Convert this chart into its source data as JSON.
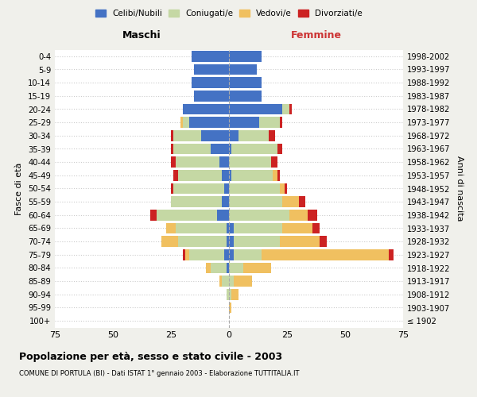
{
  "age_groups": [
    "0-4",
    "5-9",
    "10-14",
    "15-19",
    "20-24",
    "25-29",
    "30-34",
    "35-39",
    "40-44",
    "45-49",
    "50-54",
    "55-59",
    "60-64",
    "65-69",
    "70-74",
    "75-79",
    "80-84",
    "85-89",
    "90-94",
    "95-99",
    "100+"
  ],
  "birth_years": [
    "1998-2002",
    "1993-1997",
    "1988-1992",
    "1983-1987",
    "1978-1982",
    "1973-1977",
    "1968-1972",
    "1963-1967",
    "1958-1962",
    "1953-1957",
    "1948-1952",
    "1943-1947",
    "1938-1942",
    "1933-1937",
    "1928-1932",
    "1923-1927",
    "1918-1922",
    "1913-1917",
    "1908-1912",
    "1903-1907",
    "≤ 1902"
  ],
  "male_celibi": [
    16,
    15,
    16,
    15,
    20,
    17,
    12,
    8,
    4,
    3,
    2,
    3,
    5,
    1,
    1,
    2,
    1,
    0,
    0,
    0,
    0
  ],
  "male_coniugati": [
    0,
    0,
    0,
    0,
    0,
    3,
    12,
    16,
    19,
    19,
    22,
    22,
    26,
    22,
    21,
    15,
    7,
    3,
    1,
    0,
    0
  ],
  "male_vedovi": [
    0,
    0,
    0,
    0,
    0,
    1,
    0,
    0,
    0,
    0,
    0,
    0,
    0,
    4,
    7,
    2,
    2,
    1,
    0,
    0,
    0
  ],
  "male_divorziati": [
    0,
    0,
    0,
    0,
    0,
    0,
    1,
    1,
    2,
    2,
    1,
    0,
    3,
    0,
    0,
    1,
    0,
    0,
    0,
    0,
    0
  ],
  "female_nubili": [
    14,
    12,
    14,
    14,
    23,
    13,
    4,
    1,
    0,
    1,
    0,
    0,
    0,
    2,
    2,
    2,
    0,
    0,
    0,
    0,
    0
  ],
  "female_coniugate": [
    0,
    0,
    0,
    0,
    3,
    9,
    13,
    20,
    18,
    18,
    22,
    23,
    26,
    21,
    20,
    12,
    6,
    2,
    1,
    0,
    0
  ],
  "female_vedove": [
    0,
    0,
    0,
    0,
    0,
    0,
    0,
    0,
    0,
    2,
    2,
    7,
    8,
    13,
    17,
    55,
    12,
    8,
    3,
    1,
    0
  ],
  "female_divorziate": [
    0,
    0,
    0,
    0,
    1,
    1,
    3,
    2,
    3,
    1,
    1,
    3,
    4,
    3,
    3,
    2,
    0,
    0,
    0,
    0,
    0
  ],
  "color_celibi": "#4472c4",
  "color_coniugati": "#c5d8a4",
  "color_vedovi": "#f0c060",
  "color_divorziati": "#cc2222",
  "xlim": 75,
  "title": "Popolazione per età, sesso e stato civile - 2003",
  "subtitle": "COMUNE DI PORTULA (BI) - Dati ISTAT 1° gennaio 2003 - Elaborazione TUTTITALIA.IT",
  "label_maschi": "Maschi",
  "label_femmine": "Femmine",
  "ylabel_left": "Fasce di età",
  "ylabel_right": "Anni di nascita",
  "legend_labels": [
    "Celibi/Nubili",
    "Coniugati/e",
    "Vedovi/e",
    "Divorziati/e"
  ],
  "background_color": "#f0f0eb",
  "bar_background": "#ffffff"
}
